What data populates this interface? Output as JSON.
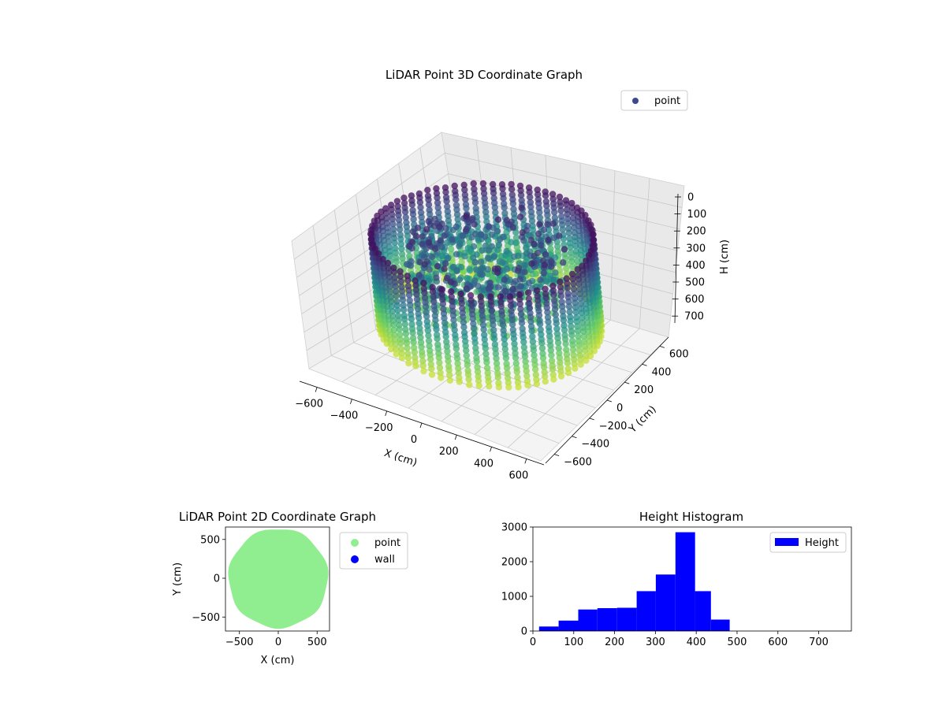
{
  "chart_data": [
    {
      "id": "lidar-3d",
      "type": "scatter",
      "title": "LiDAR Point 3D Coordinate Graph",
      "xlabel": "X (cm)",
      "ylabel": "Y (cm)",
      "zlabel": "H (cm)",
      "xlim": [
        -700,
        700
      ],
      "ylim": [
        -700,
        700
      ],
      "zlim": [
        750,
        0
      ],
      "z_inverted": true,
      "x_ticks": [
        "−600",
        "−400",
        "−200",
        "0",
        "200",
        "400",
        "600"
      ],
      "y_ticks": [
        "−600",
        "−400",
        "−200",
        "0",
        "200",
        "400",
        "600"
      ],
      "z_ticks": [
        "0",
        "100",
        "200",
        "300",
        "400",
        "500",
        "600",
        "700"
      ],
      "colormap": "viridis",
      "grid": true,
      "legend": {
        "placement": "top-right",
        "entries": [
          {
            "label": "point",
            "color": "#3b4a8c"
          }
        ]
      },
      "series": [
        {
          "name": "point",
          "shape": "ring wall with inner structure",
          "x_range": [
            -650,
            650
          ],
          "y_range": [
            -650,
            650
          ],
          "z_range": [
            0,
            750
          ]
        }
      ]
    },
    {
      "id": "lidar-2d",
      "type": "scatter",
      "title": "LiDAR Point 2D Coordinate Graph",
      "xlabel": "X (cm)",
      "ylabel": "Y (cm)",
      "xlim": [
        -680,
        660
      ],
      "ylim": [
        -680,
        660
      ],
      "x_ticks": [
        -500,
        0,
        500
      ],
      "y_ticks": [
        500,
        0,
        -500
      ],
      "grid": false,
      "legend": {
        "placement": "outside-right",
        "entries": [
          {
            "label": "point",
            "color": "#90ee90"
          },
          {
            "label": "wall",
            "color": "#0000ff"
          }
        ]
      },
      "series": [
        {
          "name": "point",
          "color": "#90ee90",
          "shape": "filled disk",
          "center": [
            0,
            0
          ],
          "radius": 640
        }
      ]
    },
    {
      "id": "height-hist",
      "type": "bar",
      "title": "Height Histogram",
      "xlabel": "",
      "ylabel": "",
      "xlim": [
        0,
        780
      ],
      "ylim": [
        0,
        3000
      ],
      "x_ticks": [
        0,
        100,
        200,
        300,
        400,
        500,
        600,
        700
      ],
      "y_ticks": [
        0,
        1000,
        2000,
        3000
      ],
      "bin_edges": [
        15,
        63,
        111,
        158,
        206,
        254,
        301,
        349,
        397,
        436,
        482,
        530,
        578,
        626,
        674,
        722,
        770
      ],
      "values": [
        130,
        300,
        620,
        660,
        670,
        1150,
        1630,
        2850,
        1150,
        330,
        0,
        0,
        0,
        0,
        0,
        0
      ],
      "color": "#0000ff",
      "grid": false,
      "legend": {
        "placement": "top-right",
        "entries": [
          {
            "label": "Height",
            "color": "#0000ff"
          }
        ]
      }
    }
  ]
}
